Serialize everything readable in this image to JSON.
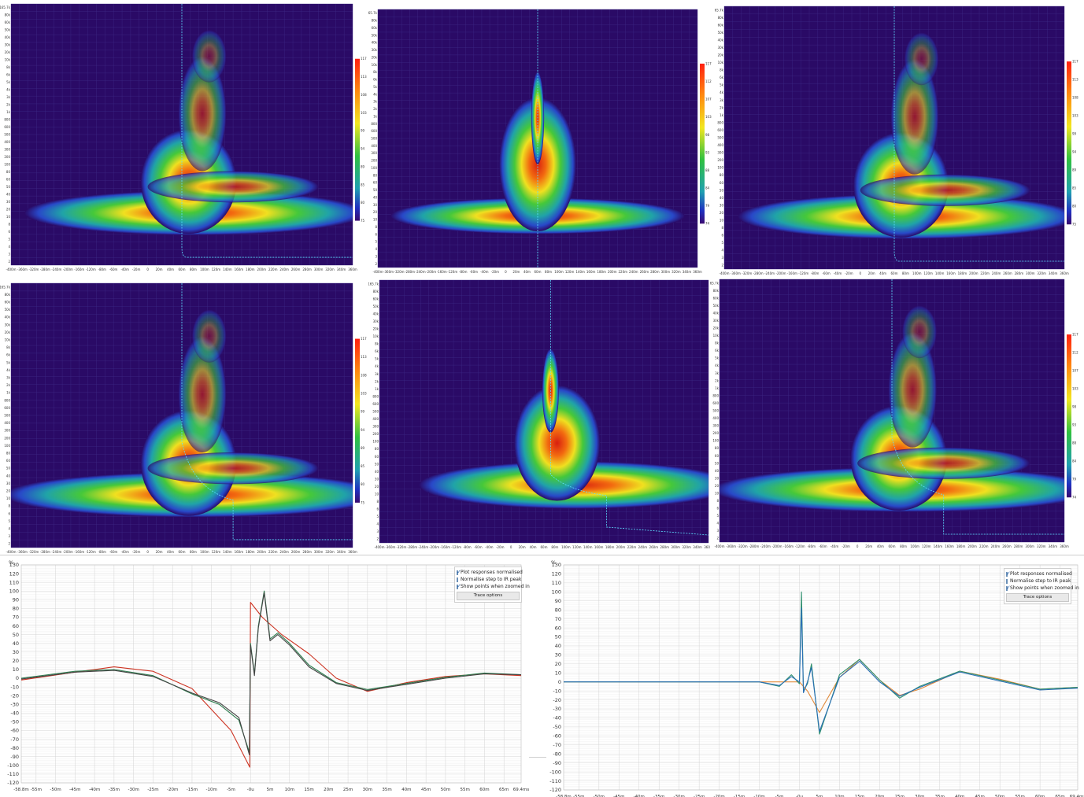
{
  "colors": {
    "background": "#2a0a66",
    "grid": "#3e2a86",
    "trace": "#5ee0ff",
    "impulse_red": "#cc3322",
    "impulse_green": "#2e7d4f",
    "impulse_dark": "#444444",
    "step_blue": "#2a6fb5",
    "step_orange": "#e0893a",
    "step_teal": "#2e8f6e"
  },
  "colorbar": {
    "icons": [
      "colorbar-scale"
    ],
    "rows": [
      {
        "labels": [
          "117",
          "113",
          "108",
          "103",
          "99",
          "94",
          "89",
          "85",
          "80",
          "75"
        ]
      },
      {
        "labels": [
          "117",
          "112",
          "107",
          "103",
          "98",
          "93",
          "88",
          "84",
          "79",
          "74"
        ]
      }
    ]
  },
  "spectrogram": {
    "freq_labels": [
      "165.7k",
      "80k",
      "60k",
      "50k",
      "40k",
      "30k",
      "20k",
      "10k",
      "8k",
      "6k",
      "5k",
      "4k",
      "3k",
      "2k",
      "1k",
      "800",
      "600",
      "500",
      "400",
      "300",
      "200",
      "100",
      "80",
      "60",
      "50",
      "40",
      "30",
      "20",
      "10",
      "8",
      "6",
      "5",
      "4",
      "3",
      "2"
    ],
    "time_labels": [
      "-400m",
      "-360m",
      "-320m",
      "-280m",
      "-240m",
      "-200m",
      "-160m",
      "-120m",
      "-80m",
      "-60m",
      "-40m",
      "-20m",
      "0",
      "20m",
      "40m",
      "60m",
      "80m",
      "100m",
      "120m",
      "140m",
      "160m",
      "180m",
      "200m",
      "220m",
      "240m",
      "260m",
      "280m",
      "300m",
      "320m",
      "340m",
      "360m"
    ]
  },
  "options_panel": {
    "plot_normalised": "Plot responses normalised",
    "normalise_step": "Normalise step to IR peak",
    "show_points": "Show points when zoomed in",
    "trace_options": "Trace options"
  },
  "chart_data": [
    {
      "type": "line",
      "ylabel": "%",
      "ylim": [
        -120,
        130
      ],
      "yticks": [
        "130",
        "120",
        "110",
        "100",
        "90",
        "80",
        "70",
        "60",
        "50",
        "40",
        "30",
        "20",
        "10",
        "0",
        "-10",
        "-20",
        "-30",
        "-40",
        "-50",
        "-60",
        "-70",
        "-80",
        "-90",
        "-100",
        "-110",
        "-120"
      ],
      "xticks": [
        "-58.8m",
        "-55m",
        "-50m",
        "-45m",
        "-40m",
        "-35m",
        "-30m",
        "-25m",
        "-20m",
        "-15m",
        "-10m",
        "-5m",
        "-0u",
        "5m",
        "10m",
        "15m",
        "20m",
        "25m",
        "30m",
        "35m",
        "40m",
        "45m",
        "50m",
        "55m",
        "60m",
        "65m",
        "69.4ms"
      ],
      "xlim": [
        -58.8,
        69.4
      ],
      "series": [
        {
          "color": "#cc3322",
          "x": [
            -58.8,
            -45,
            -35,
            -25,
            -15,
            -5,
            -0.2,
            0,
            3,
            8,
            15,
            22,
            30,
            40,
            50,
            60,
            69.4
          ],
          "y": [
            -2,
            7,
            13,
            8,
            -12,
            -60,
            -102,
            87,
            70,
            50,
            28,
            0,
            -15,
            -5,
            2,
            5,
            3
          ]
        },
        {
          "color": "#2e7d4f",
          "x": [
            -58.8,
            -45,
            -35,
            -25,
            -15,
            -8,
            -3,
            -0.3,
            0,
            1,
            2,
            3.5,
            5,
            7,
            10,
            15,
            22,
            30,
            40,
            50,
            60,
            69.4
          ],
          "y": [
            0,
            8,
            10,
            3,
            -18,
            -30,
            -48,
            -85,
            40,
            5,
            60,
            100,
            45,
            52,
            40,
            15,
            -5,
            -13,
            -6,
            1,
            6,
            4
          ]
        },
        {
          "color": "#444444",
          "x": [
            -58.8,
            -45,
            -35,
            -25,
            -15,
            -8,
            -3,
            -0.3,
            0,
            1,
            2,
            3.5,
            5,
            7,
            10,
            15,
            22,
            30,
            40,
            50,
            60,
            69.4
          ],
          "y": [
            -1,
            7,
            9,
            2,
            -17,
            -28,
            -45,
            -88,
            38,
            3,
            58,
            98,
            43,
            50,
            38,
            13,
            -6,
            -14,
            -7,
            0,
            5,
            4
          ]
        }
      ]
    },
    {
      "type": "line",
      "ylabel": "%",
      "ylim": [
        -120,
        130
      ],
      "yticks": [
        "130",
        "120",
        "110",
        "100",
        "90",
        "80",
        "70",
        "60",
        "50",
        "40",
        "30",
        "20",
        "10",
        "0",
        "-10",
        "-20",
        "-30",
        "-40",
        "-50",
        "-60",
        "-70",
        "-80",
        "-90",
        "-100",
        "-110",
        "-120"
      ],
      "xticks": [
        "-58.8m",
        "-55m",
        "-50m",
        "-45m",
        "-40m",
        "-35m",
        "-30m",
        "-25m",
        "-20m",
        "-15m",
        "-10m",
        "-5m",
        "-0u",
        "5m",
        "10m",
        "15m",
        "20m",
        "25m",
        "30m",
        "35m",
        "40m",
        "45m",
        "50m",
        "55m",
        "60m",
        "65m",
        "69.4ms"
      ],
      "xlim": [
        -58.8,
        69.4
      ],
      "series": [
        {
          "color": "#e0893a",
          "x": [
            -58.8,
            -20,
            -10,
            -5,
            0,
            2,
            5,
            10,
            15,
            20,
            25,
            30,
            40,
            50,
            60,
            69.4
          ],
          "y": [
            0,
            0,
            0,
            0,
            0,
            -10,
            -34,
            5,
            25,
            2,
            -15,
            -8,
            12,
            3,
            -8,
            -6
          ]
        },
        {
          "color": "#2e8f6e",
          "x": [
            -58.8,
            -20,
            -10,
            -5,
            -2,
            0,
            0.5,
            1,
            2,
            3,
            5,
            10,
            15,
            20,
            25,
            30,
            40,
            50,
            60,
            69.4
          ],
          "y": [
            0,
            0,
            0,
            -5,
            8,
            -2,
            100,
            -10,
            -2,
            20,
            -58,
            8,
            25,
            2,
            -18,
            -5,
            12,
            2,
            -8,
            -6
          ]
        },
        {
          "color": "#2a6fb5",
          "x": [
            -58.8,
            -20,
            -10,
            -5,
            -2,
            0,
            0.5,
            1,
            2,
            3,
            5,
            10,
            15,
            20,
            25,
            30,
            40,
            50,
            60,
            69.4
          ],
          "y": [
            0,
            0,
            0,
            -4,
            6,
            0,
            82,
            -12,
            0,
            16,
            -55,
            5,
            23,
            0,
            -16,
            -6,
            11,
            1,
            -9,
            -7
          ]
        }
      ]
    }
  ]
}
